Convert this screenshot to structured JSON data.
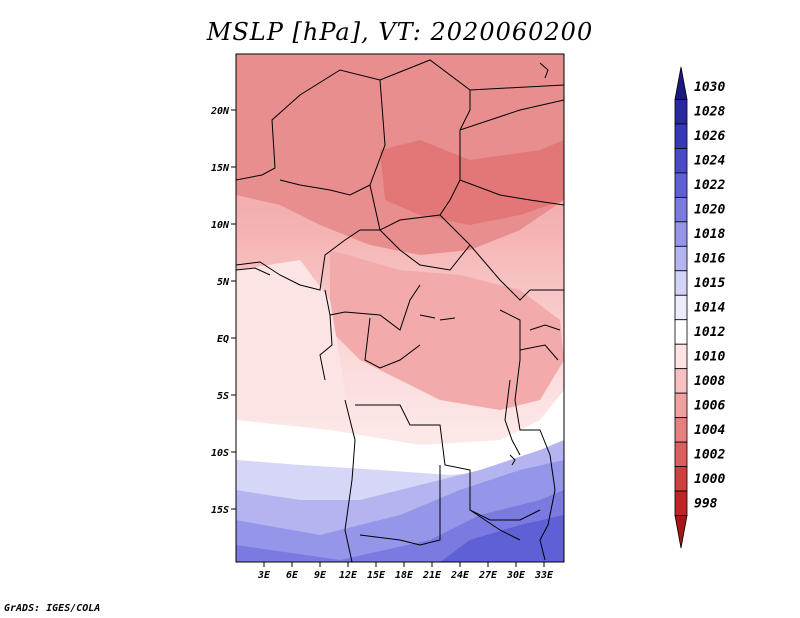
{
  "title": "MSLP [hPa], VT: 2020060200",
  "footer": "GrADS: IGES/COLA",
  "map": {
    "lat_ticks": [
      "20N",
      "15N",
      "10N",
      "5N",
      "EQ",
      "5S",
      "10S",
      "15S"
    ],
    "lon_ticks": [
      "3E",
      "6E",
      "9E",
      "12E",
      "15E",
      "18E",
      "21E",
      "24E",
      "27E",
      "30E",
      "33E"
    ]
  },
  "colorbar": {
    "labels": [
      "1030",
      "1028",
      "1026",
      "1024",
      "1022",
      "1020",
      "1018",
      "1016",
      "1015",
      "1014",
      "1012",
      "1010",
      "1008",
      "1006",
      "1004",
      "1002",
      "1000",
      "998"
    ],
    "colors": [
      "#1a1a7f",
      "#2828a0",
      "#3737b9",
      "#4a4ac9",
      "#6060d6",
      "#7a7ae0",
      "#9595e9",
      "#b4b4f0",
      "#d3d3f6",
      "#ebebfb",
      "#ffffff",
      "#fde3e3",
      "#f7c1c1",
      "#f0a0a0",
      "#e68080",
      "#dc5e5e",
      "#cf4040",
      "#bf2525",
      "#a81515"
    ]
  }
}
